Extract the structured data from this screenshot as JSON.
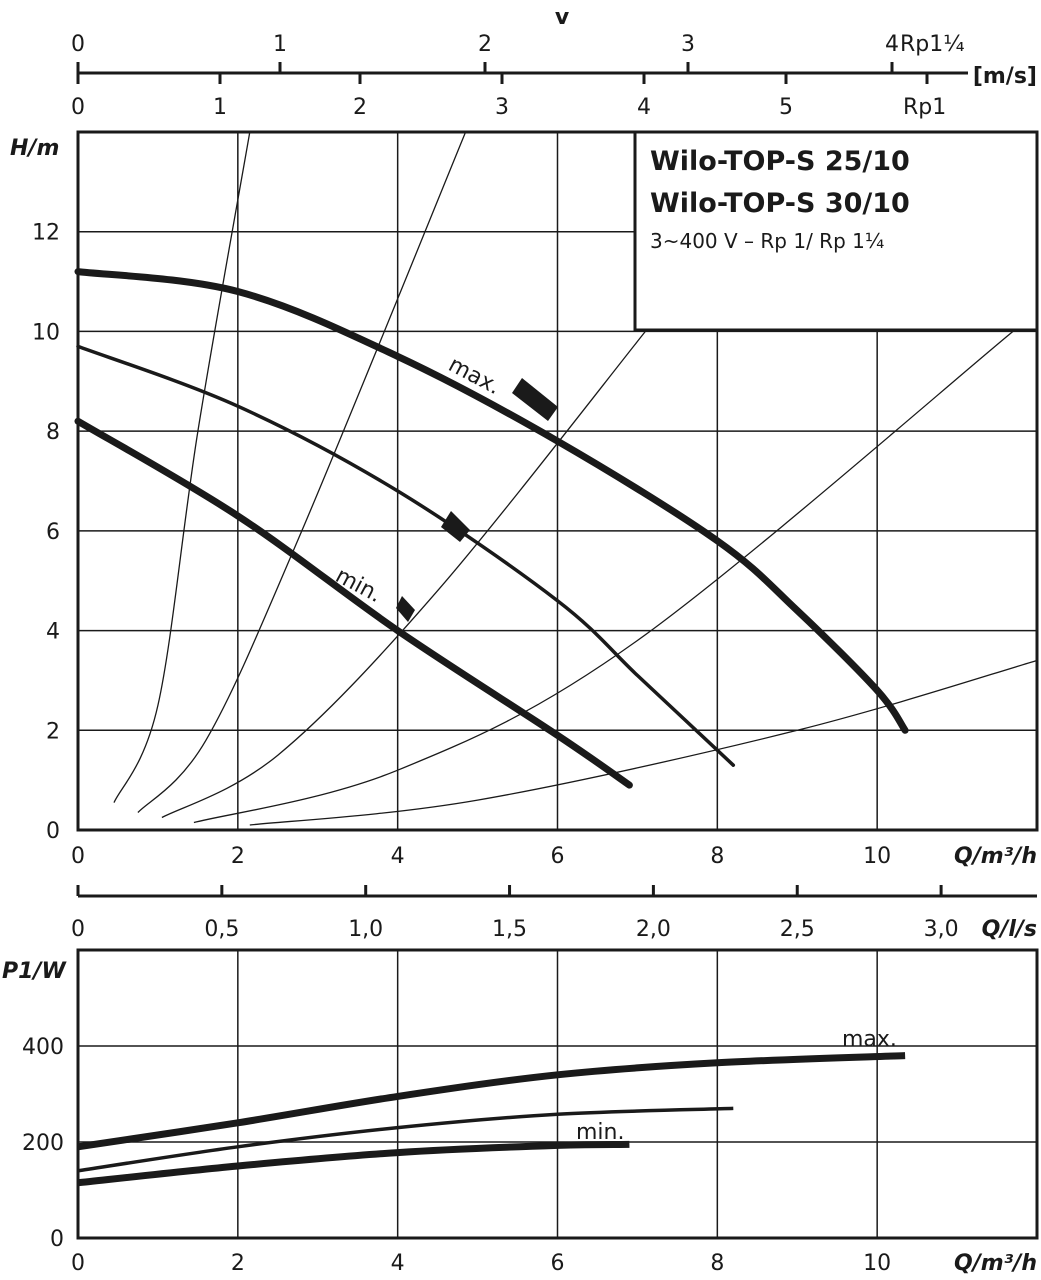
{
  "chart_data": [
    {
      "type": "line",
      "title": "Wilo-TOP-S 25/10",
      "subtitle": "Wilo-TOP-S 30/10",
      "note": "3~400 V – Rp 1/ Rp 1¼",
      "xlabel": "Q/m³/h",
      "ylabel": "H/m",
      "xlim": [
        0,
        12
      ],
      "ylim": [
        0,
        14
      ],
      "x_ticks": [
        "0",
        "2",
        "4",
        "6",
        "8",
        "10"
      ],
      "y_ticks": [
        "0",
        "2",
        "4",
        "6",
        "8",
        "10",
        "12"
      ],
      "grid": true,
      "series": [
        {
          "name": "max.",
          "points": [
            [
              0,
              11.2
            ],
            [
              2,
              10.8
            ],
            [
              4,
              9.5
            ],
            [
              6,
              7.8
            ],
            [
              8,
              5.8
            ],
            [
              9,
              4.4
            ],
            [
              10,
              2.8
            ],
            [
              10.35,
              2.0
            ]
          ]
        },
        {
          "name": "",
          "points": [
            [
              0,
              9.7
            ],
            [
              2,
              8.5
            ],
            [
              4,
              6.8
            ],
            [
              6,
              4.6
            ],
            [
              7,
              3.1
            ],
            [
              8,
              1.6
            ],
            [
              8.2,
              1.3
            ]
          ]
        },
        {
          "name": "min.",
          "points": [
            [
              0,
              8.2
            ],
            [
              2,
              6.3
            ],
            [
              4,
              4.0
            ],
            [
              6,
              1.9
            ],
            [
              6.9,
              0.9
            ]
          ]
        }
      ],
      "system_curves": [
        {
          "points": [
            [
              0.45,
              0.55
            ],
            [
              1.0,
              2.5
            ],
            [
              1.5,
              8.0
            ],
            [
              2.15,
              14
            ]
          ]
        },
        {
          "points": [
            [
              0.75,
              0.35
            ],
            [
              1.6,
              1.8
            ],
            [
              2.8,
              6.0
            ],
            [
              4.85,
              14
            ]
          ]
        },
        {
          "points": [
            [
              1.05,
              0.25
            ],
            [
              2.5,
              1.5
            ],
            [
              4.5,
              4.8
            ],
            [
              7.1,
              10.0
            ]
          ]
        },
        {
          "points": [
            [
              1.45,
              0.15
            ],
            [
              4,
              1.2
            ],
            [
              7,
              3.8
            ],
            [
              11.7,
              10.0
            ]
          ]
        },
        {
          "points": [
            [
              2.15,
              0.1
            ],
            [
              5,
              0.6
            ],
            [
              9,
              2.0
            ],
            [
              12,
              3.4
            ]
          ]
        }
      ]
    },
    {
      "type": "line",
      "xlabel": "Q/m³/h",
      "ylabel": "P1/W",
      "xlim": [
        0,
        12
      ],
      "ylim": [
        0,
        600
      ],
      "x_ticks": [
        "0",
        "2",
        "4",
        "6",
        "8",
        "10"
      ],
      "y_ticks": [
        "0",
        "200",
        "400"
      ],
      "grid": true,
      "series": [
        {
          "name": "max.",
          "points": [
            [
              0,
              190
            ],
            [
              2,
              240
            ],
            [
              4,
              295
            ],
            [
              6,
              340
            ],
            [
              8,
              365
            ],
            [
              10.35,
              380
            ]
          ]
        },
        {
          "name": "",
          "points": [
            [
              0,
              140
            ],
            [
              2,
              190
            ],
            [
              4,
              230
            ],
            [
              6,
              258
            ],
            [
              8.2,
              270
            ]
          ]
        },
        {
          "name": "min.",
          "points": [
            [
              0,
              115
            ],
            [
              2,
              150
            ],
            [
              4,
              178
            ],
            [
              6,
              193
            ],
            [
              6.9,
              195
            ]
          ]
        }
      ]
    }
  ],
  "scales": {
    "v_label": "v",
    "v_unit": "[m/s]",
    "v_rp114_label": "Rp1¼",
    "v_rp1_label": "Rp1",
    "v_rp114_ticks": [
      "0",
      "1",
      "2",
      "3",
      "4"
    ],
    "v_rp1_ticks": [
      "0",
      "1",
      "2",
      "3",
      "4",
      "5"
    ],
    "q_ls_label": "Q/l/s",
    "q_ls_ticks": [
      "0",
      "0,5",
      "1,0",
      "1,5",
      "2,0",
      "2,5",
      "3,0"
    ]
  }
}
